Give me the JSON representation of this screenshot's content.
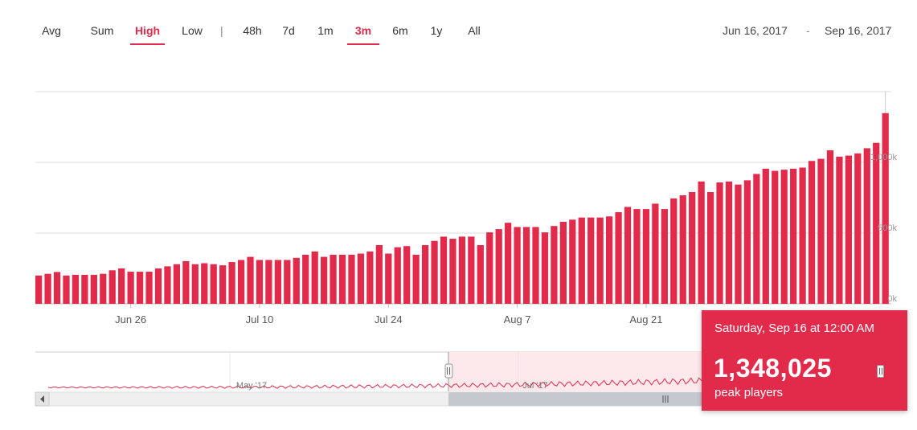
{
  "toolbar": {
    "aggregations": [
      {
        "label": "Avg",
        "active": false
      },
      {
        "label": "Sum",
        "active": false
      },
      {
        "label": "High",
        "active": true
      },
      {
        "label": "Low",
        "active": false
      }
    ],
    "separator": "|",
    "ranges": [
      {
        "label": "48h",
        "active": false
      },
      {
        "label": "7d",
        "active": false
      },
      {
        "label": "1m",
        "active": false
      },
      {
        "label": "3m",
        "active": true
      },
      {
        "label": "6m",
        "active": false
      },
      {
        "label": "1y",
        "active": false
      },
      {
        "label": "All",
        "active": false
      }
    ],
    "date_from": "Jun 16, 2017",
    "date_dash": "-",
    "date_to": "Sep 16, 2017"
  },
  "tooltip": {
    "date": "Saturday, Sep 16 at 12:00 AM",
    "value": "1,348,025",
    "label": "peak players"
  },
  "navigator": {
    "labels": [
      "May '17",
      "Jul '17"
    ],
    "scroll_left_icon": "chevron-left-icon",
    "scroll_grip_icon": "grip-icon"
  },
  "colors": {
    "bar": "#e22b4b",
    "accent": "#e22b4b",
    "navigator_fill": "#fde8eb",
    "scrollbar_thumb": "#c4c9cf",
    "scrollbar_track": "#efefef"
  },
  "chart_data": {
    "type": "bar",
    "x_start": "2017-06-16",
    "x_ticks": [
      "Jun 26",
      "Jul 10",
      "Jul 24",
      "Aug 7",
      "Aug 21"
    ],
    "y_ticks": [
      "0k",
      "500k",
      "1,000k"
    ],
    "ylim": [
      0,
      1500000
    ],
    "grid": true,
    "values": [
      200000,
      212000,
      225000,
      200000,
      205000,
      205000,
      205000,
      212000,
      237000,
      250000,
      227000,
      227000,
      227000,
      250000,
      265000,
      280000,
      302000,
      280000,
      287000,
      280000,
      272000,
      295000,
      310000,
      332000,
      310000,
      310000,
      310000,
      310000,
      325000,
      347000,
      370000,
      332000,
      347000,
      347000,
      347000,
      355000,
      370000,
      415000,
      355000,
      400000,
      408000,
      347000,
      415000,
      445000,
      475000,
      460000,
      475000,
      475000,
      415000,
      505000,
      528000,
      573000,
      543000,
      543000,
      543000,
      505000,
      550000,
      580000,
      595000,
      610000,
      610000,
      610000,
      618000,
      648000,
      685000,
      670000,
      670000,
      708000,
      670000,
      745000,
      767000,
      790000,
      865000,
      790000,
      858000,
      865000,
      843000,
      873000,
      918000,
      955000,
      940000,
      948000,
      955000,
      963000,
      1010000,
      1025000,
      1085000,
      1040000,
      1048000,
      1063000,
      1100000,
      1138000,
      1348025
    ]
  }
}
